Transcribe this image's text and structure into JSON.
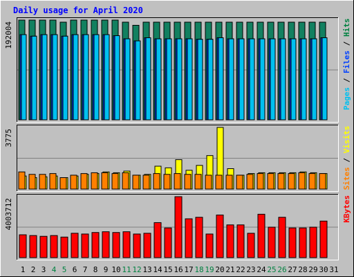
{
  "chart_data": {
    "type": "bar",
    "title": "Daily usage for April 2020",
    "categories": [
      "1",
      "2",
      "3",
      "4",
      "5",
      "6",
      "7",
      "8",
      "9",
      "10",
      "11",
      "12",
      "13",
      "14",
      "15",
      "16",
      "17",
      "18",
      "19",
      "20",
      "21",
      "22",
      "23",
      "24",
      "25",
      "26",
      "27",
      "28",
      "29",
      "30",
      "31"
    ],
    "weekend_categories": [
      "4",
      "5",
      "11",
      "12",
      "18",
      "19",
      "25",
      "26"
    ],
    "panels": [
      {
        "id": "hits",
        "max_label": "192004",
        "ymax": 192004,
        "legend": [
          {
            "text": "Pages",
            "color": "#00c0f0"
          },
          {
            "text": " / ",
            "color": "#000000"
          },
          {
            "text": "Files",
            "color": "#0040ff"
          },
          {
            "text": " / ",
            "color": "#000000"
          },
          {
            "text": "Hits",
            "color": "#008040"
          }
        ],
        "series": [
          {
            "name": "Hits",
            "color": "#128060",
            "values": [
              192004,
              192004,
              192004,
              192004,
              188000,
              192004,
              192004,
              192004,
              192004,
              192004,
              188000,
              182000,
              188000,
              188000,
              188000,
              188000,
              188000,
              188000,
              188000,
              188000,
              188000,
              188000,
              188000,
              188000,
              188000,
              188000,
              188000,
              188000,
              188000,
              188000,
              null
            ]
          },
          {
            "name": "Files",
            "color": "#0040ff",
            "values": [
              164000,
              161000,
              164000,
              164000,
              161000,
              164000,
              164000,
              164000,
              164000,
              162000,
              156000,
              152000,
              158000,
              156000,
              156000,
              156000,
              156000,
              155000,
              155000,
              158000,
              156000,
              156000,
              156000,
              156000,
              156000,
              156000,
              156000,
              156000,
              156000,
              158000,
              null
            ]
          },
          {
            "name": "Pages",
            "color": "#00c0f0",
            "values": [
              164000,
              161000,
              164000,
              164000,
              161000,
              164000,
              164000,
              164000,
              164000,
              162000,
              156000,
              152000,
              158000,
              156000,
              156000,
              156000,
              156000,
              155000,
              155000,
              158000,
              156000,
              156000,
              156000,
              156000,
              156000,
              156000,
              156000,
              156000,
              156000,
              158000,
              null
            ]
          }
        ]
      },
      {
        "id": "visits",
        "max_label": "3775",
        "ymax": 3775,
        "legend": [
          {
            "text": "Sites",
            "color": "#ff8000"
          },
          {
            "text": " / ",
            "color": "#000000"
          },
          {
            "text": "Visits",
            "color": "#ffff00"
          }
        ],
        "series": [
          {
            "name": "Visits",
            "color": "#ffff00",
            "values": [
              800,
              700,
              750,
              800,
              700,
              800,
              900,
              950,
              1050,
              1000,
              1100,
              850,
              900,
              1400,
              1300,
              1800,
              1150,
              1450,
              2050,
              3775,
              1250,
              850,
              950,
              1000,
              1000,
              1000,
              1000,
              1050,
              1000,
              950,
              null
            ]
          },
          {
            "name": "Sites",
            "color": "#ff8000",
            "values": [
              1050,
              900,
              900,
              950,
              700,
              850,
              950,
              1000,
              1000,
              950,
              1000,
              850,
              850,
              950,
              900,
              950,
              900,
              900,
              850,
              850,
              850,
              850,
              900,
              950,
              950,
              950,
              950,
              1000,
              950,
              950,
              null
            ]
          }
        ]
      },
      {
        "id": "kbytes",
        "max_label": "4003712",
        "ymax": 4003712,
        "legend": [
          {
            "text": "KBytes",
            "color": "#ff0000"
          }
        ],
        "series": [
          {
            "name": "KBytes",
            "color": "#ff0000",
            "values": [
              1500000,
              1450000,
              1400000,
              1450000,
              1350000,
              1600000,
              1550000,
              1650000,
              1700000,
              1650000,
              1700000,
              1550000,
              1600000,
              2300000,
              1950000,
              4003712,
              2550000,
              2650000,
              1550000,
              2800000,
              2150000,
              2150000,
              1600000,
              2850000,
              2000000,
              2650000,
              1950000,
              1950000,
              2000000,
              2400000,
              null
            ]
          }
        ]
      }
    ]
  }
}
